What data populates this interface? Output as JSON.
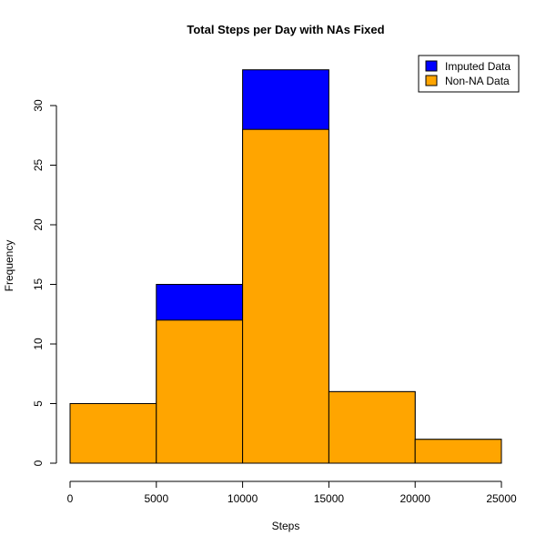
{
  "chart_data": {
    "type": "bar",
    "title": "Total Steps per Day with NAs Fixed",
    "xlabel": "Steps",
    "ylabel": "Frequency",
    "bins": [
      [
        0,
        5000
      ],
      [
        5000,
        10000
      ],
      [
        10000,
        15000
      ],
      [
        15000,
        20000
      ],
      [
        20000,
        25000
      ]
    ],
    "series": [
      {
        "name": "Non-NA Data",
        "color": "#FFA500",
        "values": [
          5,
          12,
          28,
          6,
          2
        ]
      },
      {
        "name": "Imputed Data",
        "color": "#0000FF",
        "values": [
          5,
          15,
          33,
          6,
          2
        ]
      }
    ],
    "xlim": [
      0,
      25000
    ],
    "ylim": [
      0,
      33
    ],
    "xticks": [
      0,
      5000,
      10000,
      15000,
      20000,
      25000
    ],
    "xtick_labels": [
      "0",
      "5000",
      "10000",
      "15000",
      "20000",
      "25000"
    ],
    "yticks": [
      0,
      5,
      10,
      15,
      20,
      25,
      30
    ],
    "ytick_labels": [
      "0",
      "5",
      "10",
      "15",
      "20",
      "25",
      "30"
    ],
    "legend": {
      "position": "top-right",
      "entries": [
        {
          "label": "Imputed Data",
          "color": "#0000FF"
        },
        {
          "label": "Non-NA Data",
          "color": "#FFA500"
        }
      ]
    },
    "grid": false
  }
}
